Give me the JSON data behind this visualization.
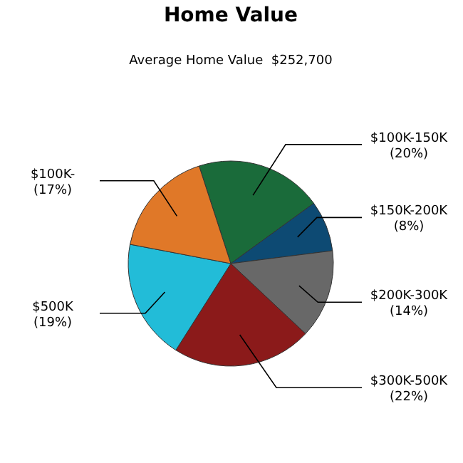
{
  "chart_data": {
    "type": "pie",
    "title": "Home Value",
    "subtitle": "Average Home Value  $252,700",
    "categories": [
      "$100K-150K",
      "$150K-200K",
      "$200K-300K",
      "$300K-500K",
      "$500K",
      "$100K-"
    ],
    "values": [
      20,
      8,
      14,
      22,
      19,
      17
    ],
    "value_labels": [
      "(20%)",
      "(8%)",
      "(14%)",
      "(22%)",
      "(19%)",
      "(17%)"
    ],
    "colors": [
      "#1a6b3a",
      "#0d4a73",
      "#686868",
      "#8b1a1a",
      "#22bcd8",
      "#e07828"
    ]
  }
}
